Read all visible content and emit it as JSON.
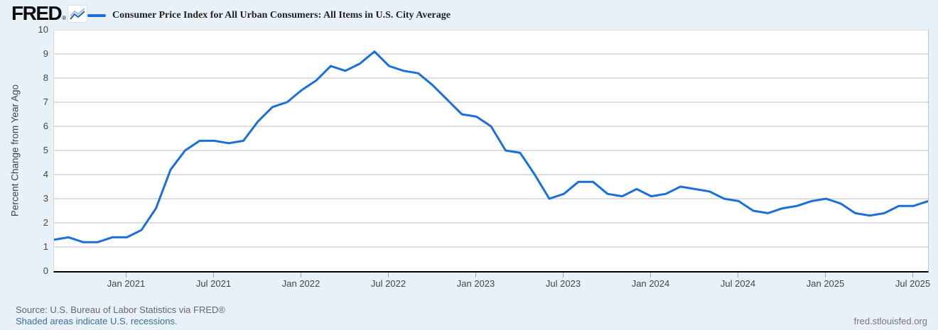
{
  "header": {
    "logo_text": "FRED",
    "registered_mark": "®",
    "legend_label": "Consumer Price Index for All Urban Consumers: All Items in U.S. City Average",
    "accent_color": "#1a6fdb"
  },
  "chart_data": {
    "type": "line",
    "title": "Consumer Price Index for All Urban Consumers: All Items in U.S. City Average",
    "xlabel": "",
    "ylabel": "Percent Change from Year Ago",
    "ylim": [
      0,
      10
    ],
    "y_ticks": [
      0,
      1,
      2,
      3,
      4,
      5,
      6,
      7,
      8,
      9,
      10
    ],
    "grid": "horizontal",
    "legend_position": "top-left",
    "line_color": "#1a6fdb",
    "x_tick_labels": [
      "Jan 2021",
      "Jul 2021",
      "Jan 2022",
      "Jul 2022",
      "Jan 2023",
      "Jul 2023",
      "Jan 2024",
      "Jul 2024",
      "Jan 2025",
      "Jul 2025"
    ],
    "x_tick_indices": [
      5,
      11,
      17,
      23,
      29,
      35,
      41,
      47,
      53,
      59
    ],
    "x": [
      "Aug 2020",
      "Sep 2020",
      "Oct 2020",
      "Nov 2020",
      "Dec 2020",
      "Jan 2021",
      "Feb 2021",
      "Mar 2021",
      "Apr 2021",
      "May 2021",
      "Jun 2021",
      "Jul 2021",
      "Aug 2021",
      "Sep 2021",
      "Oct 2021",
      "Nov 2021",
      "Dec 2021",
      "Jan 2022",
      "Feb 2022",
      "Mar 2022",
      "Apr 2022",
      "May 2022",
      "Jun 2022",
      "Jul 2022",
      "Aug 2022",
      "Sep 2022",
      "Oct 2022",
      "Nov 2022",
      "Dec 2022",
      "Jan 2023",
      "Feb 2023",
      "Mar 2023",
      "Apr 2023",
      "May 2023",
      "Jun 2023",
      "Jul 2023",
      "Aug 2023",
      "Sep 2023",
      "Oct 2023",
      "Nov 2023",
      "Dec 2023",
      "Jan 2024",
      "Feb 2024",
      "Mar 2024",
      "Apr 2024",
      "May 2024",
      "Jun 2024",
      "Jul 2024",
      "Aug 2024",
      "Sep 2024",
      "Oct 2024",
      "Nov 2024",
      "Dec 2024",
      "Jan 2025",
      "Feb 2025",
      "Mar 2025",
      "Apr 2025",
      "May 2025",
      "Jun 2025",
      "Jul 2025",
      "Aug 2025"
    ],
    "values": [
      1.3,
      1.4,
      1.2,
      1.2,
      1.4,
      1.4,
      1.7,
      2.6,
      4.2,
      5.0,
      5.4,
      5.4,
      5.3,
      5.4,
      6.2,
      6.8,
      7.0,
      7.5,
      7.9,
      8.5,
      8.3,
      8.6,
      9.1,
      8.5,
      8.3,
      8.2,
      7.7,
      7.1,
      6.5,
      6.4,
      6.0,
      5.0,
      4.9,
      4.0,
      3.0,
      3.2,
      3.7,
      3.7,
      3.2,
      3.1,
      3.4,
      3.1,
      3.2,
      3.5,
      3.4,
      3.3,
      3.0,
      2.9,
      2.5,
      2.4,
      2.6,
      2.7,
      2.9,
      3.0,
      2.8,
      2.4,
      2.3,
      2.4,
      2.7,
      2.7,
      2.9
    ]
  },
  "footer": {
    "source_line": "Source: U.S. Bureau of Labor Statistics via FRED®",
    "recession_note": "Shaded areas indicate U.S. recessions.",
    "site_url": "fred.stlouisfed.org"
  }
}
